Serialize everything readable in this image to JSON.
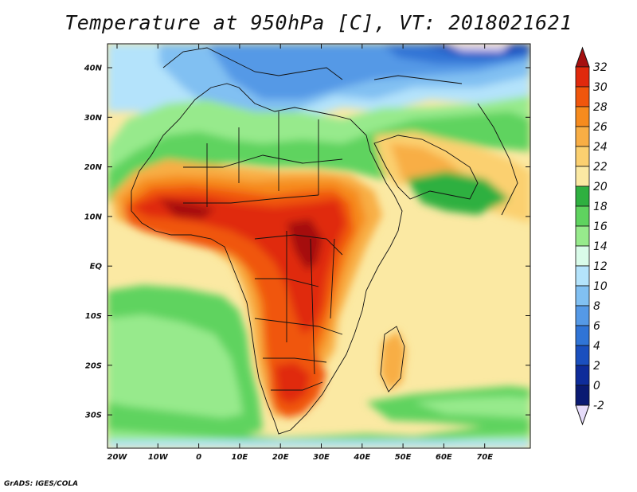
{
  "title": "Temperature at 950hPa [C], VT: 2018021621",
  "credit": "GrADS: IGES/COLA",
  "latitude_labels": [
    "40N",
    "30N",
    "20N",
    "10N",
    "EQ",
    "10S",
    "20S",
    "30S"
  ],
  "longitude_labels": [
    "20W",
    "10W",
    "0",
    "10E",
    "20E",
    "30E",
    "40E",
    "50E",
    "60E",
    "70E"
  ],
  "colorbar": {
    "levels": [
      "32",
      "30",
      "28",
      "26",
      "24",
      "22",
      "20",
      "18",
      "16",
      "14",
      "12",
      "10",
      "8",
      "6",
      "4",
      "2",
      "0",
      "-2"
    ],
    "colors": [
      "#a50f0f",
      "#e0290c",
      "#f0560c",
      "#f68b1e",
      "#f8ae45",
      "#fbd070",
      "#fbe9a3",
      "#2fb040",
      "#5fd35f",
      "#97ea8c",
      "#d9fbe9",
      "#b4e3fb",
      "#81c0f2",
      "#5599e6",
      "#3074d6",
      "#1a4fbe",
      "#0e2c9a",
      "#0a1a72",
      "#e6dcfa"
    ]
  }
}
